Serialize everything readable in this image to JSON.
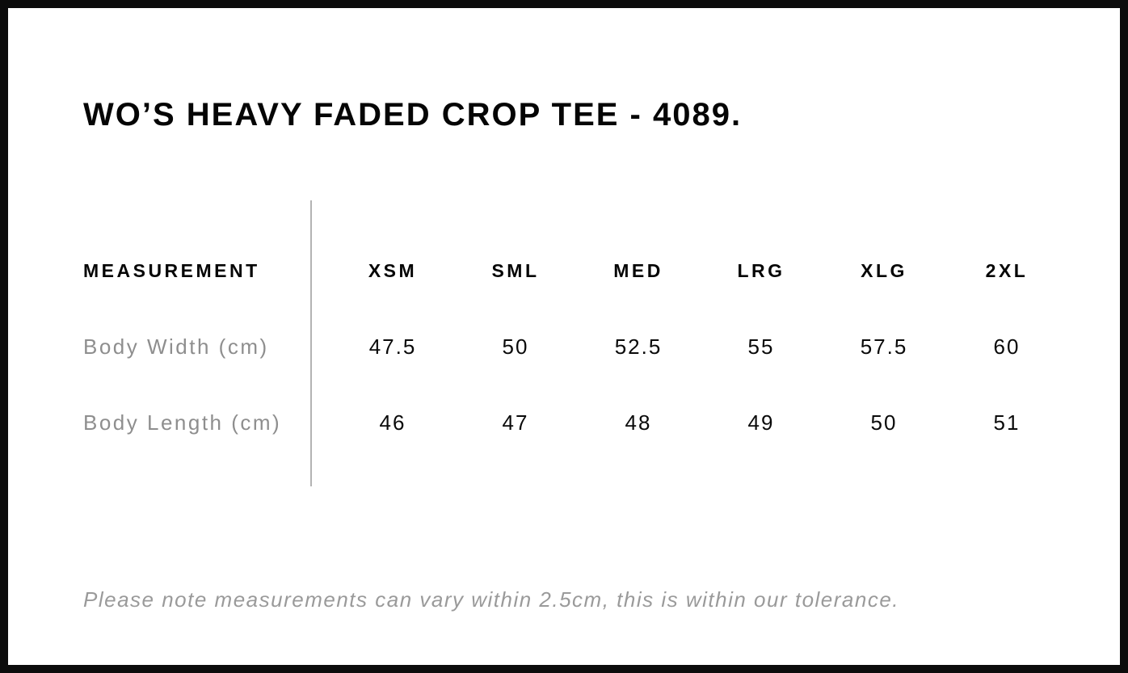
{
  "page": {
    "title": "WO’S HEAVY FADED CROP TEE - 4089.",
    "note": "Please note measurements can vary within 2.5cm, this is within our tolerance."
  },
  "chart_data": {
    "type": "table",
    "title": "WO’S HEAVY FADED CROP TEE - 4089.",
    "columns": [
      "MEASUREMENT",
      "XSM",
      "SML",
      "MED",
      "LRG",
      "XLG",
      "2XL"
    ],
    "rows": [
      {
        "label": "Body Width (cm)",
        "values": [
          "47.5",
          "50",
          "52.5",
          "55",
          "57.5",
          "60"
        ]
      },
      {
        "label": "Body Length (cm)",
        "values": [
          "46",
          "47",
          "48",
          "49",
          "50",
          "51"
        ]
      }
    ],
    "footnote": "Please note measurements can vary within 2.5cm, this is within our tolerance.",
    "tolerance_cm": 2.5
  },
  "colors": {
    "frame_border": "#0c0c0c",
    "heading_text": "#050505",
    "value_text": "#0a0a0a",
    "row_label_text": "#8e8e8e",
    "note_text": "#9a9a9a",
    "divider": "#b3b3b3",
    "background": "#ffffff"
  }
}
